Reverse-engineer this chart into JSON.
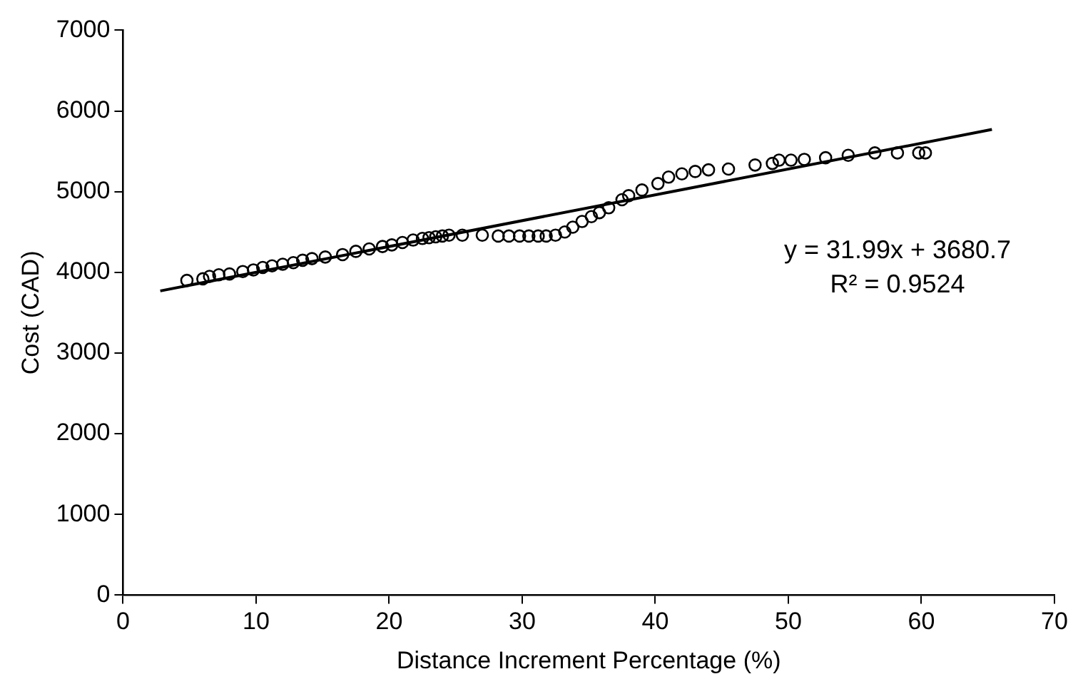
{
  "chart_data": {
    "type": "scatter",
    "xlabel": "Distance Increment Percentage (%)",
    "ylabel": "Cost (CAD)",
    "xlim": [
      0,
      70
    ],
    "xticks": [
      0,
      10,
      20,
      30,
      40,
      50,
      60,
      70
    ],
    "ylim": [
      0,
      7000
    ],
    "yticks": [
      0,
      1000,
      2000,
      3000,
      4000,
      5000,
      6000,
      7000
    ],
    "grid": false,
    "legend": false,
    "marker": "circle",
    "series": [
      {
        "color": "#000000",
        "x": [
          4.8,
          6,
          6.5,
          7.2,
          8,
          9,
          9.8,
          10.5,
          11.2,
          12,
          12.8,
          13.5,
          14.2,
          15.2,
          16.5,
          17.5,
          18.5,
          19.5,
          20.2,
          21,
          21.8,
          22.5,
          23,
          23.5,
          24,
          24.5,
          25.5,
          27,
          28.2,
          29,
          29.8,
          30.5,
          31.2,
          31.8,
          32.5,
          33.2,
          33.8,
          34.5,
          35.2,
          35.8,
          36.5,
          37.5,
          38,
          39,
          40.2,
          41,
          42,
          43,
          44,
          45.5,
          47.5,
          48.8,
          49.3,
          50.2,
          51.2,
          52.8,
          54.5,
          56.5,
          58.2,
          59.8,
          60.3
        ],
        "values": [
          3900,
          3920,
          3950,
          3970,
          3980,
          4010,
          4030,
          4060,
          4080,
          4100,
          4120,
          4150,
          4170,
          4190,
          4220,
          4260,
          4290,
          4320,
          4340,
          4370,
          4400,
          4420,
          4430,
          4440,
          4450,
          4460,
          4460,
          4460,
          4450,
          4450,
          4450,
          4450,
          4450,
          4450,
          4460,
          4500,
          4560,
          4630,
          4690,
          4740,
          4800,
          4900,
          4950,
          5020,
          5100,
          5180,
          5220,
          5250,
          5270,
          5280,
          5330,
          5350,
          5390,
          5390,
          5400,
          5420,
          5450,
          5480,
          5480,
          5480,
          5480
        ]
      },
      {
        "type": "line",
        "color": "#000000",
        "x": [
          2.8,
          65.3
        ],
        "values": [
          3770,
          5770
        ],
        "marker": "none",
        "line_style": "solid"
      }
    ],
    "annotations": [
      "y = 31.99x + 3680.7",
      "R² = 0.9524"
    ]
  }
}
